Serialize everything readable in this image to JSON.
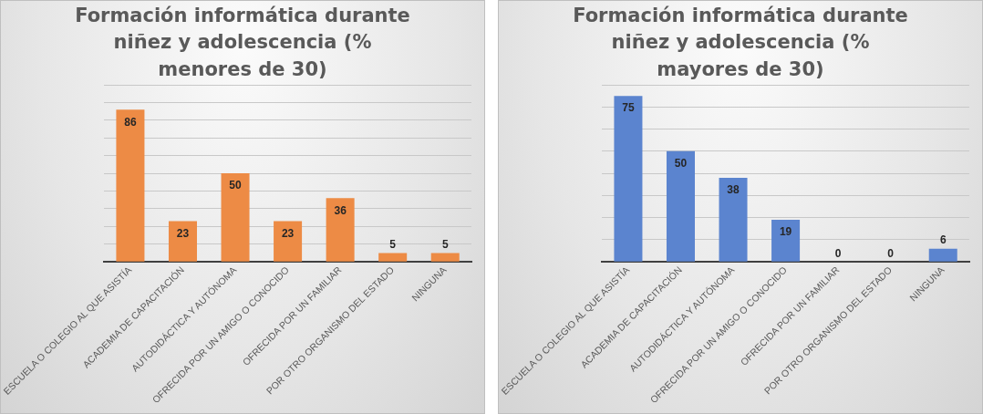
{
  "chart_data": [
    {
      "type": "bar",
      "title": "Formación informática durante niñez y adolescencia (% menores de 30)",
      "categories": [
        "ESCUELA O COLEGIO AL QUE ASISTÍA",
        "ACADEMIA DE CAPACITACIÓN",
        "AUTODIDÁCTICA Y AUTÓNOMA",
        "OFRECIDA POR UN AMIGO O CONOCIDO",
        "OFRECIDA POR UN FAMILIAR",
        "POR OTRO ORGANISMO DEL ESTADO",
        "NINGUNA"
      ],
      "values": [
        86,
        23,
        50,
        23,
        36,
        5,
        5
      ],
      "color": "#ed8b45",
      "ylim": [
        0,
        100
      ],
      "yticks": [
        {
          "value": 0,
          "label": null
        },
        {
          "value": 10,
          "label": null
        },
        {
          "value": 20,
          "label": null
        },
        {
          "value": 30,
          "label": null
        },
        {
          "value": 40,
          "label": null
        },
        {
          "value": 50,
          "label": null
        },
        {
          "value": 60,
          "label": null
        },
        {
          "value": 70,
          "label": null
        },
        {
          "value": 80,
          "label": null
        },
        {
          "value": 90,
          "label": null
        },
        {
          "value": 100,
          "label": null
        }
      ],
      "grid": "y",
      "data_labels": true,
      "tick_labels": "x"
    },
    {
      "type": "bar",
      "title": "Formación informática durante niñez y adolescencia (% mayores de 30)",
      "categories": [
        "ESCUELA O COLEGIO AL QUE ASISTÍA",
        "ACADEMIA DE CAPACITACIÓN",
        "AUTODIDÁCTICA Y AUTÓNOMA",
        "OFRECIDA POR UN AMIGO O CONOCIDO",
        "OFRECIDA POR UN FAMILIAR",
        "POR OTRO ORGANISMO DEL ESTADO",
        "NINGUNA"
      ],
      "values": [
        75,
        50,
        38,
        19,
        0,
        0,
        6
      ],
      "color": "#5b84cf",
      "ylim": [
        0,
        80
      ],
      "yticks": [
        {
          "value": 0,
          "label": null
        },
        {
          "value": 10,
          "label": null
        },
        {
          "value": 20,
          "label": null
        },
        {
          "value": 30,
          "label": null
        },
        {
          "value": 40,
          "label": null
        },
        {
          "value": 50,
          "label": null
        },
        {
          "value": 60,
          "label": null
        },
        {
          "value": 70,
          "label": null
        },
        {
          "value": 80,
          "label": null
        }
      ],
      "grid": "y",
      "data_labels": true,
      "tick_labels": "x"
    }
  ]
}
